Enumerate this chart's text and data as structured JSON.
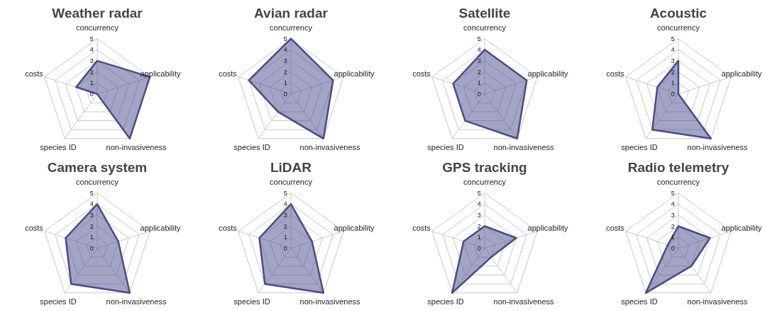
{
  "chart_data": [
    {
      "type": "radar",
      "title": "Weather radar",
      "categories": [
        "concurrency",
        "applicability",
        "non-invasiveness",
        "species ID",
        "costs"
      ],
      "series": [
        {
          "color": "#4a4a8c",
          "values": [
            3,
            5,
            5,
            0,
            2
          ]
        }
      ],
      "ylim": [
        0,
        5
      ],
      "yticks": [
        0,
        1,
        2,
        3,
        4,
        5
      ],
      "grid": true
    },
    {
      "type": "radar",
      "title": "Avian radar",
      "categories": [
        "concurrency",
        "applicability",
        "non-invasiveness",
        "species ID",
        "costs"
      ],
      "series": [
        {
          "color": "#4a4a8c",
          "values": [
            5,
            4,
            5,
            2,
            4
          ]
        }
      ],
      "ylim": [
        0,
        5
      ],
      "yticks": [
        0,
        1,
        2,
        3,
        4,
        5
      ],
      "grid": true
    },
    {
      "type": "radar",
      "title": "Satellite",
      "categories": [
        "concurrency",
        "applicability",
        "non-invasiveness",
        "species ID",
        "costs"
      ],
      "series": [
        {
          "color": "#4a4a8c",
          "values": [
            4,
            4,
            5,
            3,
            3
          ]
        }
      ],
      "ylim": [
        0,
        5
      ],
      "yticks": [
        0,
        1,
        2,
        3,
        4,
        5
      ],
      "grid": true
    },
    {
      "type": "radar",
      "title": "Acoustic",
      "categories": [
        "concurrency",
        "applicability",
        "non-invasiveness",
        "species ID",
        "costs"
      ],
      "series": [
        {
          "color": "#4a4a8c",
          "values": [
            3,
            0,
            5,
            4,
            2
          ]
        }
      ],
      "ylim": [
        0,
        5
      ],
      "yticks": [
        0,
        1,
        2,
        3,
        4,
        5
      ],
      "grid": true
    },
    {
      "type": "radar",
      "title": "Camera system",
      "categories": [
        "concurrency",
        "applicability",
        "non-invasiveness",
        "species ID",
        "costs"
      ],
      "series": [
        {
          "color": "#4a4a8c",
          "values": [
            4,
            2,
            5,
            4,
            3
          ]
        }
      ],
      "ylim": [
        0,
        5
      ],
      "yticks": [
        0,
        1,
        2,
        3,
        4,
        5
      ],
      "grid": true
    },
    {
      "type": "radar",
      "title": "LiDAR",
      "categories": [
        "concurrency",
        "applicability",
        "non-invasiveness",
        "species ID",
        "costs"
      ],
      "series": [
        {
          "color": "#4a4a8c",
          "values": [
            4,
            2,
            5,
            4,
            3
          ]
        }
      ],
      "ylim": [
        0,
        5
      ],
      "yticks": [
        0,
        1,
        2,
        3,
        4,
        5
      ],
      "grid": true
    },
    {
      "type": "radar",
      "title": "GPS tracking",
      "categories": [
        "concurrency",
        "applicability",
        "non-invasiveness",
        "species ID",
        "costs"
      ],
      "series": [
        {
          "color": "#4a4a8c",
          "values": [
            2,
            3,
            1,
            5,
            2
          ]
        }
      ],
      "ylim": [
        0,
        5
      ],
      "yticks": [
        0,
        1,
        2,
        3,
        4,
        5
      ],
      "grid": true
    },
    {
      "type": "radar",
      "title": "Radio telemetry",
      "categories": [
        "concurrency",
        "applicability",
        "non-invasiveness",
        "species ID",
        "costs"
      ],
      "series": [
        {
          "color": "#4a4a8c",
          "values": [
            2,
            3,
            2,
            5,
            1
          ]
        }
      ],
      "ylim": [
        0,
        5
      ],
      "yticks": [
        0,
        1,
        2,
        3,
        4,
        5
      ],
      "grid": true
    }
  ]
}
